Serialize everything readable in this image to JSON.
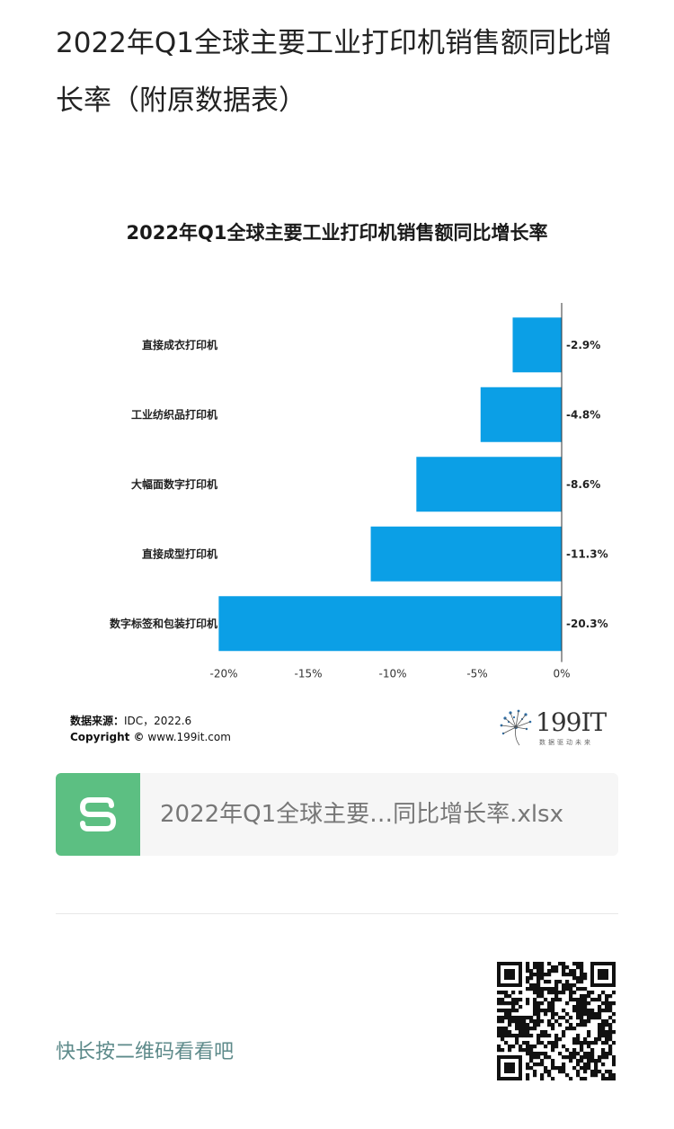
{
  "article": {
    "title": "2022年Q1全球主要工业打印机销售额同比增长率（附原数据表）"
  },
  "chart_data": {
    "type": "bar",
    "orientation": "horizontal",
    "title": "2022年Q1全球主要工业打印机销售额同比增长率",
    "categories": [
      "直接成衣打印机",
      "工业纺织品打印机",
      "大幅面数字打印机",
      "直接成型打印机",
      "数字标签和包装打印机"
    ],
    "values": [
      -2.9,
      -4.8,
      -8.6,
      -11.3,
      -20.3
    ],
    "data_labels": [
      "-2.9%",
      "-4.8%",
      "-8.6%",
      "-11.3%",
      "-20.3%"
    ],
    "xlim": [
      -20,
      0
    ],
    "xticks": [
      -20,
      -15,
      -10,
      -5,
      0
    ],
    "xtick_labels": [
      "-20%",
      "-15%",
      "-10%",
      "-5%",
      "0%"
    ],
    "xlabel": "",
    "ylabel": "",
    "grid": false,
    "bar_color": "#0b9fe6"
  },
  "source": {
    "label": "数据来源：",
    "value": "IDC，2022.6",
    "copyright_label": "Copyright ©",
    "copyright_value": "www.199it.com"
  },
  "logo": {
    "text": "199IT",
    "sub": "数据驱动未来"
  },
  "file": {
    "icon": "spreadsheet-s-icon",
    "name": "2022年Q1全球主要…同比增长率.xlsx"
  },
  "qr": {
    "hint": "快长按二维码看看吧"
  }
}
